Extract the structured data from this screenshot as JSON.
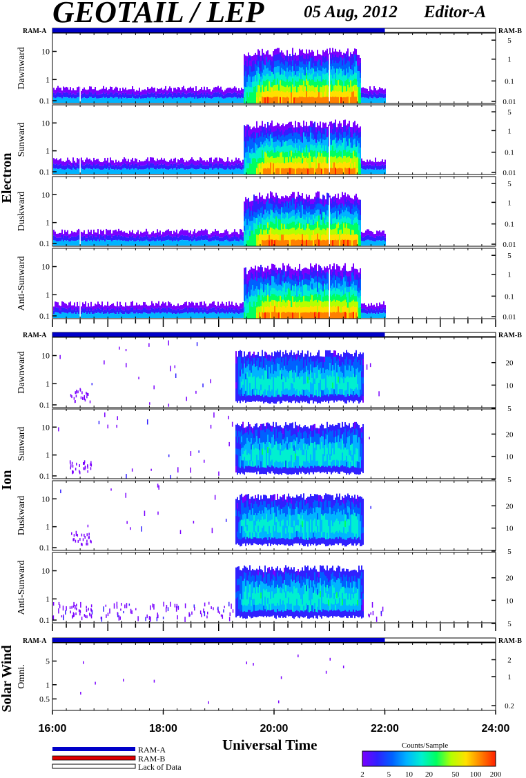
{
  "header": {
    "title": "GEOTAIL / LEP",
    "date": "05 Aug, 2012",
    "editor": "Editor-A"
  },
  "colors": {
    "ram_a": "#0000c8",
    "ram_b": "#e00000",
    "lack": "#ffffff",
    "colormap": [
      "#7a00ff",
      "#3020ff",
      "#0060ff",
      "#00b4ff",
      "#00f0d0",
      "#00ff60",
      "#b4ff00",
      "#ffe000",
      "#ff8000",
      "#ff2000"
    ]
  },
  "chart_data": {
    "type": "heatmap",
    "x_axis": {
      "label": "Universal Time",
      "range": [
        "16:00",
        "24:00"
      ],
      "tick_labels": [
        "16:00",
        "18:00",
        "20:00",
        "22:00",
        "24:00"
      ],
      "tick_hours": [
        16,
        18,
        20,
        22,
        24
      ]
    },
    "ram_bar": {
      "label_left": "RAM-A",
      "label_right": "RAM-B",
      "ram_a_until_hour": 22.0
    },
    "groups": [
      {
        "name": "Electron",
        "panels": [
          {
            "name": "Dawnward",
            "left_ticks": [
              "10",
              "1",
              "0.1"
            ],
            "right_ticks": [
              "5",
              "1",
              "0.1",
              "0.01"
            ]
          },
          {
            "name": "Sunward",
            "left_ticks": [
              "10",
              "1",
              "0.1"
            ],
            "right_ticks": [
              "5",
              "1",
              "0.1",
              "0.01"
            ]
          },
          {
            "name": "Duskward",
            "left_ticks": [
              "10",
              "1",
              "0.1"
            ],
            "right_ticks": [
              "5",
              "1",
              "0.1",
              "0.01"
            ]
          },
          {
            "name": "Anti-Sunward",
            "left_ticks": [
              "10",
              "1",
              "0.1"
            ],
            "right_ticks": [
              "5",
              "1",
              "0.1",
              "0.01"
            ]
          }
        ]
      },
      {
        "name": "Ion",
        "panels": [
          {
            "name": "Dawnward",
            "left_ticks": [
              "10",
              "1",
              "0.1"
            ],
            "right_ticks": [
              "20",
              "10",
              "5"
            ]
          },
          {
            "name": "Sunward",
            "left_ticks": [
              "10",
              "1",
              "0.1"
            ],
            "right_ticks": [
              "20",
              "10",
              "5"
            ]
          },
          {
            "name": "Duskward",
            "left_ticks": [
              "10",
              "1",
              "0.1"
            ],
            "right_ticks": [
              "20",
              "10",
              "5"
            ]
          },
          {
            "name": "Anti-Sunward",
            "left_ticks": [
              "10",
              "1",
              "0.1"
            ],
            "right_ticks": [
              "20",
              "10",
              "5"
            ]
          }
        ]
      },
      {
        "name": "Solar Wind",
        "panels": [
          {
            "name": "Omni.",
            "left_ticks": [
              "5",
              "1",
              "0.5"
            ],
            "right_ticks": [
              "2",
              "1",
              "0.2"
            ]
          }
        ]
      }
    ],
    "events": {
      "electron_active_hours": [
        19.45,
        21.55
      ],
      "electron_data_end_hour": 22.0,
      "ion_active_hours": [
        19.3,
        21.6
      ]
    },
    "colorbar": {
      "title": "Counts/Sample",
      "tick_labels": [
        "2",
        "5",
        "10",
        "20",
        "50",
        "100",
        "200"
      ],
      "tick_values": [
        2,
        5,
        10,
        20,
        50,
        100,
        200
      ],
      "range": [
        2,
        200
      ],
      "scale": "log"
    },
    "legend": [
      {
        "label": "RAM-A",
        "color": "#0000c8"
      },
      {
        "label": "RAM-B",
        "color": "#e00000"
      },
      {
        "label": "Lack of Data",
        "color": "#ffffff"
      }
    ]
  }
}
